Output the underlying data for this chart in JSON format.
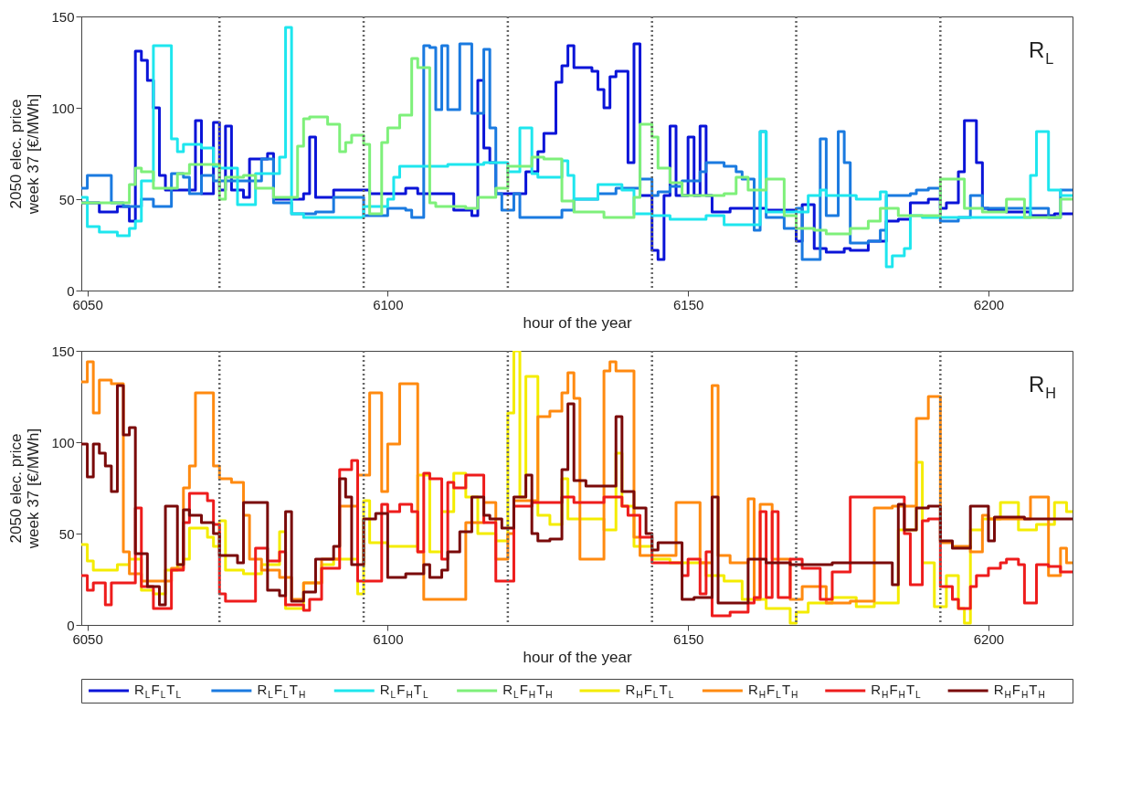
{
  "chart_data": [
    {
      "type": "step",
      "xlabel": "hour of the year",
      "ylabel": "2050 elec. price\nweek 37 [€/MWh]",
      "xlim": [
        6049,
        6214
      ],
      "xticks": [
        6050,
        6100,
        6150,
        6200
      ],
      "ylim": [
        0,
        150
      ],
      "yticks": [
        0,
        50,
        100,
        150
      ],
      "grid": false,
      "legend": "bottom",
      "annotations": [
        "R$_{L}$"
      ],
      "ref_lines": [
        {
          "axis": "x",
          "value": 6072,
          "color": "#666666",
          "line_style": "dotted"
        },
        {
          "axis": "x",
          "value": 6096,
          "color": "#666666",
          "line_style": "dotted"
        },
        {
          "axis": "x",
          "value": 6120,
          "color": "#666666",
          "line_style": "dotted"
        },
        {
          "axis": "x",
          "value": 6144,
          "color": "#666666",
          "line_style": "dotted"
        },
        {
          "axis": "x",
          "value": 6168,
          "color": "#666666",
          "line_style": "dotted"
        },
        {
          "axis": "x",
          "value": 6192,
          "color": "#666666",
          "line_style": "dotted"
        }
      ],
      "series": [
        {
          "name": "R$_{L}$F$_{L}$T$_{L}$",
          "color": "#0a14d8",
          "x": [
            6049,
            6052,
            6055,
            6057,
            6058,
            6059,
            6060,
            6061,
            6062,
            6063,
            6068,
            6069,
            6071,
            6072,
            6073,
            6074,
            6076,
            6077,
            6080,
            6081,
            6086,
            6087,
            6088,
            6091,
            6097,
            6103,
            6105,
            6111,
            6114,
            6115,
            6116,
            6117,
            6118,
            6123,
            6125,
            6126,
            6128,
            6129,
            6130,
            6131,
            6134,
            6135,
            6136,
            6137,
            6138,
            6140,
            6141,
            6142,
            6144,
            6145,
            6146,
            6147,
            6148,
            6150,
            6151,
            6152,
            6153,
            6154,
            6157,
            6163,
            6168,
            6169,
            6171,
            6173,
            6176,
            6177,
            6180,
            6183,
            6185,
            6187,
            6190,
            6192,
            6193,
            6195,
            6196,
            6198,
            6199,
            6200,
            6203,
            6207,
            6211,
            6214
          ],
          "values": [
            48,
            43,
            46,
            38,
            131,
            126,
            115,
            100,
            63,
            55,
            93,
            53,
            92,
            55,
            90,
            55,
            51,
            72,
            75,
            50,
            53,
            84,
            51,
            55,
            53,
            56,
            53,
            44,
            41,
            115,
            78,
            70,
            53,
            65,
            76,
            86,
            114,
            123,
            134,
            122,
            120,
            110,
            100,
            117,
            120,
            70,
            135,
            52,
            22,
            17,
            52,
            90,
            52,
            84,
            52,
            90,
            52,
            43,
            45,
            44,
            27,
            47,
            23,
            21,
            23,
            22,
            27,
            38,
            39,
            48,
            50,
            45,
            48,
            65,
            93,
            70,
            45,
            44,
            43,
            41,
            42,
            42
          ]
        },
        {
          "name": "R$_{L}$F$_{L}$T$_{H}$",
          "color": "#1a7ae0",
          "x": [
            6049,
            6050,
            6054,
            6056,
            6059,
            6061,
            6064,
            6066,
            6067,
            6069,
            6071,
            6079,
            6081,
            6084,
            6088,
            6091,
            6096,
            6100,
            6103,
            6104,
            6106,
            6107,
            6108,
            6109,
            6110,
            6112,
            6114,
            6116,
            6117,
            6118,
            6119,
            6121,
            6122,
            6129,
            6131,
            6135,
            6138,
            6142,
            6144,
            6145,
            6147,
            6149,
            6152,
            6153,
            6156,
            6158,
            6159,
            6161,
            6162,
            6163,
            6166,
            6168,
            6169,
            6172,
            6173,
            6175,
            6176,
            6177,
            6180,
            6182,
            6183,
            6187,
            6188,
            6190,
            6192,
            6195,
            6197,
            6199,
            6204,
            6210,
            6212,
            6214
          ],
          "values": [
            56,
            63,
            48,
            46,
            50,
            46,
            64,
            62,
            53,
            63,
            60,
            72,
            48,
            42,
            43,
            51,
            41,
            45,
            44,
            40,
            134,
            133,
            99,
            134,
            99,
            135,
            97,
            132,
            89,
            53,
            44,
            53,
            40,
            44,
            50,
            53,
            56,
            61,
            52,
            54,
            57,
            60,
            65,
            70,
            68,
            65,
            61,
            33,
            87,
            40,
            34,
            45,
            17,
            83,
            41,
            87,
            70,
            26,
            27,
            33,
            52,
            53,
            55,
            56,
            38,
            40,
            52,
            45,
            45,
            40,
            55,
            55
          ]
        },
        {
          "name": "R$_{L}$F$_{H}$T$_{L}$",
          "color": "#1ee6ee",
          "x": [
            6049,
            6050,
            6052,
            6055,
            6057,
            6058,
            6059,
            6061,
            6064,
            6065,
            6066,
            6069,
            6071,
            6072,
            6075,
            6078,
            6082,
            6083,
            6084,
            6086,
            6096,
            6100,
            6101,
            6102,
            6110,
            6116,
            6120,
            6122,
            6124,
            6125,
            6129,
            6130,
            6131,
            6135,
            6139,
            6141,
            6144,
            6147,
            6153,
            6156,
            6162,
            6163,
            6170,
            6172,
            6173,
            6178,
            6182,
            6183,
            6184,
            6186,
            6187,
            6189,
            6207,
            6208,
            6210,
            6212,
            6214
          ],
          "values": [
            51,
            35,
            32,
            30,
            34,
            38,
            60,
            134,
            83,
            76,
            80,
            78,
            68,
            67,
            47,
            64,
            73,
            144,
            42,
            40,
            46,
            50,
            62,
            68,
            69,
            70,
            65,
            89,
            64,
            62,
            71,
            63,
            50,
            58,
            55,
            42,
            41,
            39,
            41,
            36,
            87,
            43,
            52,
            55,
            52,
            50,
            54,
            13,
            19,
            23,
            41,
            40,
            63,
            87,
            55,
            52,
            52
          ]
        },
        {
          "name": "R$_{L}$F$_{H}$T$_{H}$",
          "color": "#7ef07a",
          "x": [
            6049,
            6057,
            6058,
            6059,
            6061,
            6065,
            6067,
            6072,
            6073,
            6076,
            6078,
            6081,
            6085,
            6086,
            6087,
            6090,
            6092,
            6093,
            6094,
            6096,
            6097,
            6099,
            6100,
            6102,
            6104,
            6105,
            6107,
            6108,
            6113,
            6115,
            6118,
            6120,
            6124,
            6126,
            6129,
            6131,
            6136,
            6141,
            6142,
            6144,
            6145,
            6147,
            6149,
            6156,
            6158,
            6160,
            6163,
            6166,
            6168,
            6171,
            6173,
            6177,
            6180,
            6182,
            6185,
            6192,
            6196,
            6199,
            6203,
            6206,
            6212,
            6214
          ],
          "values": [
            48,
            58,
            67,
            65,
            56,
            64,
            69,
            50,
            62,
            63,
            56,
            51,
            79,
            94,
            95,
            91,
            76,
            81,
            85,
            80,
            42,
            81,
            89,
            96,
            127,
            122,
            48,
            46,
            45,
            51,
            56,
            68,
            73,
            72,
            49,
            43,
            40,
            51,
            91,
            84,
            67,
            59,
            52,
            53,
            62,
            55,
            61,
            41,
            34,
            33,
            31,
            34,
            38,
            45,
            41,
            61,
            45,
            43,
            50,
            40,
            50,
            50
          ]
        }
      ]
    },
    {
      "type": "step",
      "xlabel": "hour of the year",
      "ylabel": "2050 elec. price\nweek 37 [€/MWh]",
      "xlim": [
        6049,
        6214
      ],
      "xticks": [
        6050,
        6100,
        6150,
        6200
      ],
      "ylim": [
        0,
        150
      ],
      "yticks": [
        0,
        50,
        100,
        150
      ],
      "grid": false,
      "legend": "bottom",
      "annotations": [
        "R$_{H}$"
      ],
      "ref_lines": [
        {
          "axis": "x",
          "value": 6072,
          "color": "#666666",
          "line_style": "dotted"
        },
        {
          "axis": "x",
          "value": 6096,
          "color": "#666666",
          "line_style": "dotted"
        },
        {
          "axis": "x",
          "value": 6120,
          "color": "#666666",
          "line_style": "dotted"
        },
        {
          "axis": "x",
          "value": 6144,
          "color": "#666666",
          "line_style": "dotted"
        },
        {
          "axis": "x",
          "value": 6168,
          "color": "#666666",
          "line_style": "dotted"
        },
        {
          "axis": "x",
          "value": 6192,
          "color": "#666666",
          "line_style": "dotted"
        }
      ],
      "series": [
        {
          "name": "R$_{H}$F$_{L}$T$_{L}$",
          "color": "#f4ec00",
          "x": [
            6049,
            6050,
            6051,
            6055,
            6057,
            6059,
            6061,
            6063,
            6065,
            6066,
            6067,
            6070,
            6071,
            6072,
            6073,
            6076,
            6079,
            6082,
            6083,
            6086,
            6089,
            6091,
            6095,
            6096,
            6097,
            6100,
            6105,
            6107,
            6109,
            6111,
            6113,
            6115,
            6118,
            6120,
            6121,
            6122,
            6123,
            6125,
            6127,
            6129,
            6130,
            6136,
            6138,
            6139,
            6141,
            6144,
            6147,
            6153,
            6156,
            6159,
            6163,
            6167,
            6168,
            6170,
            6174,
            6178,
            6181,
            6185,
            6188,
            6189,
            6191,
            6193,
            6195,
            6196,
            6197,
            6199,
            6202,
            6205,
            6208,
            6211,
            6213,
            6214
          ],
          "values": [
            44,
            35,
            30,
            33,
            36,
            19,
            17,
            30,
            33,
            36,
            53,
            48,
            43,
            57,
            30,
            28,
            33,
            51,
            9,
            23,
            33,
            36,
            17,
            68,
            45,
            43,
            82,
            40,
            62,
            83,
            70,
            50,
            46,
            116,
            150,
            70,
            136,
            60,
            55,
            80,
            58,
            52,
            94,
            65,
            43,
            36,
            34,
            27,
            24,
            14,
            9,
            1,
            7,
            12,
            15,
            10,
            12,
            52,
            89,
            34,
            10,
            27,
            9,
            1,
            52,
            58,
            67,
            52,
            55,
            67,
            62,
            62
          ]
        },
        {
          "name": "R$_{H}$F$_{L}$T$_{H}$",
          "color": "#ff8a10",
          "x": [
            6049,
            6050,
            6051,
            6052,
            6054,
            6056,
            6057,
            6059,
            6064,
            6066,
            6067,
            6068,
            6071,
            6072,
            6074,
            6076,
            6077,
            6079,
            6082,
            6084,
            6086,
            6089,
            6092,
            6095,
            6097,
            6099,
            6100,
            6102,
            6105,
            6106,
            6113,
            6116,
            6118,
            6120,
            6121,
            6125,
            6127,
            6129,
            6130,
            6131,
            6132,
            6136,
            6137,
            6138,
            6141,
            6142,
            6148,
            6152,
            6154,
            6155,
            6157,
            6160,
            6161,
            6162,
            6164,
            6167,
            6169,
            6173,
            6177,
            6181,
            6184,
            6188,
            6190,
            6192,
            6194,
            6197,
            6199,
            6200,
            6207,
            6210,
            6212,
            6213,
            6214
          ],
          "values": [
            133,
            144,
            116,
            134,
            132,
            40,
            28,
            24,
            31,
            75,
            87,
            127,
            87,
            80,
            78,
            60,
            36,
            30,
            26,
            14,
            23,
            36,
            65,
            82,
            127,
            73,
            99,
            132,
            40,
            14,
            56,
            67,
            36,
            50,
            68,
            114,
            117,
            127,
            138,
            124,
            36,
            139,
            144,
            139,
            48,
            38,
            67,
            34,
            131,
            38,
            34,
            69,
            14,
            66,
            36,
            14,
            21,
            12,
            13,
            64,
            65,
            113,
            125,
            45,
            43,
            40,
            60,
            58,
            70,
            27,
            42,
            34,
            34
          ]
        },
        {
          "name": "R$_{H}$F$_{H}$T$_{L}$",
          "color": "#ee1c1c",
          "x": [
            6049,
            6050,
            6051,
            6053,
            6054,
            6058,
            6059,
            6061,
            6064,
            6066,
            6067,
            6070,
            6071,
            6072,
            6073,
            6078,
            6080,
            6082,
            6083,
            6086,
            6087,
            6089,
            6092,
            6094,
            6095,
            6099,
            6100,
            6102,
            6104,
            6105,
            6106,
            6107,
            6109,
            6110,
            6111,
            6113,
            6116,
            6118,
            6121,
            6124,
            6129,
            6131,
            6136,
            6139,
            6140,
            6142,
            6144,
            6149,
            6150,
            6152,
            6153,
            6154,
            6157,
            6160,
            6161,
            6162,
            6163,
            6164,
            6165,
            6167,
            6169,
            6172,
            6174,
            6177,
            6186,
            6187,
            6189,
            6190,
            6192,
            6194,
            6195,
            6197,
            6198,
            6200,
            6202,
            6203,
            6205,
            6206,
            6208,
            6210,
            6212,
            6214
          ],
          "values": [
            27,
            19,
            23,
            11,
            23,
            64,
            21,
            9,
            30,
            56,
            72,
            68,
            55,
            17,
            13,
            42,
            35,
            40,
            11,
            8,
            14,
            31,
            85,
            90,
            24,
            66,
            62,
            66,
            62,
            40,
            83,
            80,
            36,
            78,
            75,
            82,
            56,
            24,
            65,
            67,
            70,
            67,
            70,
            65,
            60,
            48,
            34,
            27,
            36,
            17,
            40,
            5,
            7,
            12,
            15,
            62,
            15,
            62,
            15,
            36,
            31,
            14,
            29,
            70,
            50,
            22,
            57,
            58,
            21,
            14,
            9,
            21,
            27,
            31,
            34,
            36,
            33,
            12,
            33,
            32,
            29,
            29
          ]
        },
        {
          "name": "R$_{H}$F$_{H}$T$_{H}$",
          "color": "#7a0a0a",
          "x": [
            6049,
            6050,
            6051,
            6052,
            6053,
            6054,
            6055,
            6056,
            6057,
            6058,
            6060,
            6062,
            6063,
            6065,
            6066,
            6067,
            6069,
            6071,
            6072,
            6075,
            6076,
            6080,
            6082,
            6083,
            6084,
            6086,
            6088,
            6091,
            6092,
            6093,
            6094,
            6096,
            6098,
            6100,
            6103,
            6106,
            6107,
            6109,
            6110,
            6112,
            6114,
            6116,
            6117,
            6119,
            6121,
            6123,
            6124,
            6125,
            6127,
            6129,
            6130,
            6131,
            6133,
            6138,
            6139,
            6141,
            6143,
            6144,
            6145,
            6149,
            6151,
            6154,
            6155,
            6160,
            6163,
            6167,
            6174,
            6184,
            6185,
            6186,
            6188,
            6190,
            6192,
            6194,
            6197,
            6200,
            6201,
            6206,
            6214
          ],
          "values": [
            99,
            81,
            99,
            94,
            87,
            73,
            131,
            104,
            108,
            39,
            21,
            11,
            65,
            33,
            63,
            60,
            56,
            50,
            38,
            34,
            67,
            19,
            16,
            62,
            13,
            18,
            36,
            43,
            80,
            70,
            33,
            58,
            61,
            26,
            28,
            33,
            26,
            30,
            40,
            51,
            70,
            60,
            58,
            53,
            70,
            82,
            50,
            46,
            47,
            85,
            121,
            79,
            76,
            114,
            73,
            64,
            50,
            41,
            45,
            14,
            15,
            70,
            12,
            36,
            34,
            33,
            34,
            22,
            66,
            52,
            64,
            65,
            46,
            42,
            65,
            46,
            59,
            58,
            58
          ]
        }
      ]
    }
  ]
}
